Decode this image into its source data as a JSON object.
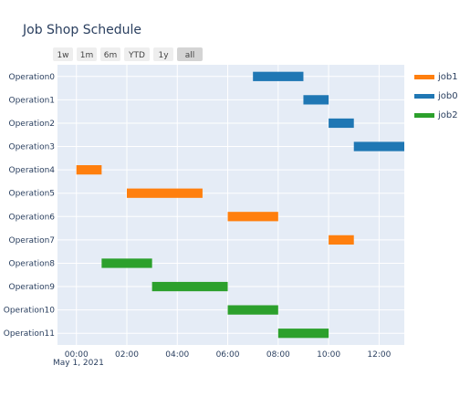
{
  "chart_data": {
    "type": "gantt",
    "title": "Job Shop Schedule",
    "date_label": "May 1, 2021",
    "xaxis": {
      "range_hours": [
        -0.75,
        13.0
      ],
      "tick_hours": [
        0,
        2,
        4,
        6,
        8,
        10,
        12
      ],
      "tick_labels": [
        "00:00",
        "02:00",
        "04:00",
        "06:00",
        "08:00",
        "10:00",
        "12:00"
      ]
    },
    "categories": [
      "Operation0",
      "Operation1",
      "Operation2",
      "Operation3",
      "Operation4",
      "Operation5",
      "Operation6",
      "Operation7",
      "Operation8",
      "Operation9",
      "Operation10",
      "Operation11"
    ],
    "range_buttons": [
      {
        "label": "1w",
        "active": false
      },
      {
        "label": "1m",
        "active": false
      },
      {
        "label": "6m",
        "active": false
      },
      {
        "label": "YTD",
        "active": false
      },
      {
        "label": "1y",
        "active": false
      },
      {
        "label": "all",
        "active": true
      }
    ],
    "series": [
      {
        "name": "job1",
        "color": "#ff7f0e",
        "tasks": [
          {
            "operation": "Operation4",
            "start": 0,
            "end": 1
          },
          {
            "operation": "Operation5",
            "start": 2,
            "end": 5
          },
          {
            "operation": "Operation6",
            "start": 6,
            "end": 8
          },
          {
            "operation": "Operation7",
            "start": 10,
            "end": 11
          }
        ]
      },
      {
        "name": "job0",
        "color": "#1f77b4",
        "tasks": [
          {
            "operation": "Operation0",
            "start": 7,
            "end": 9
          },
          {
            "operation": "Operation1",
            "start": 9,
            "end": 10
          },
          {
            "operation": "Operation2",
            "start": 10,
            "end": 11
          },
          {
            "operation": "Operation3",
            "start": 11,
            "end": 13
          }
        ]
      },
      {
        "name": "job2",
        "color": "#2ca02c",
        "tasks": [
          {
            "operation": "Operation8",
            "start": 1,
            "end": 3
          },
          {
            "operation": "Operation9",
            "start": 3,
            "end": 6
          },
          {
            "operation": "Operation10",
            "start": 6,
            "end": 8
          },
          {
            "operation": "Operation11",
            "start": 8,
            "end": 10
          }
        ]
      }
    ]
  }
}
